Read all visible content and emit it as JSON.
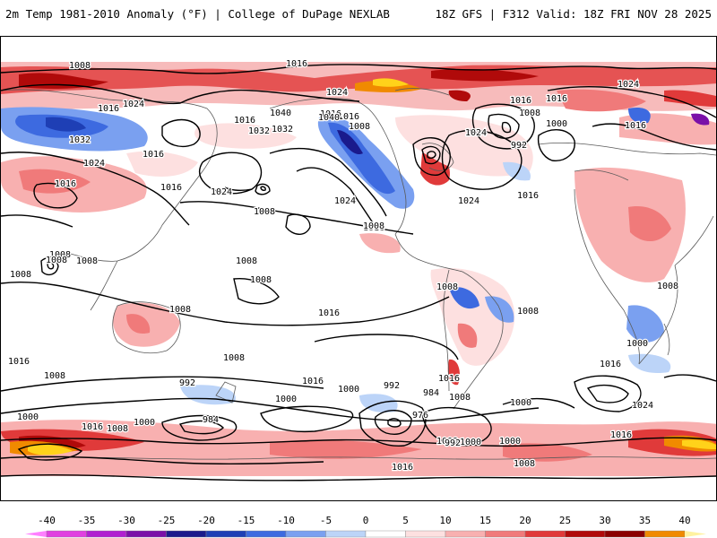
{
  "header": {
    "left_title": "2m Temp 1981-2010 Anomaly (°F) | College of DuPage NEXLAB",
    "right_title": "18Z GFS | F312 Valid: 18Z FRI NOV 28 2025"
  },
  "map": {
    "contour_labels": [
      {
        "t": "1008"
      },
      {
        "t": "1016"
      },
      {
        "t": "1016"
      },
      {
        "t": "1024"
      },
      {
        "t": "1032"
      },
      {
        "t": "1024"
      },
      {
        "t": "1016"
      },
      {
        "t": "1016"
      },
      {
        "t": "1024"
      },
      {
        "t": "1008"
      },
      {
        "t": "1016"
      },
      {
        "t": "1016"
      },
      {
        "t": "1040"
      },
      {
        "t": "1032"
      },
      {
        "t": "1024"
      },
      {
        "t": "1016"
      },
      {
        "t": "1008"
      },
      {
        "t": "1016"
      },
      {
        "t": "1032"
      },
      {
        "t": "1040"
      },
      {
        "t": "1024"
      },
      {
        "t": "1016"
      },
      {
        "t": "1024"
      },
      {
        "t": "1016"
      },
      {
        "t": "992"
      },
      {
        "t": "1000"
      },
      {
        "t": "1024"
      },
      {
        "t": "1008"
      },
      {
        "t": "1016"
      },
      {
        "t": "1024"
      },
      {
        "t": "1016"
      },
      {
        "t": "1016"
      },
      {
        "t": "1008"
      },
      {
        "t": "1008"
      },
      {
        "t": "1008"
      },
      {
        "t": "1008"
      },
      {
        "t": "1008"
      },
      {
        "t": "1008"
      },
      {
        "t": "1008"
      },
      {
        "t": "1016"
      },
      {
        "t": "1008"
      },
      {
        "t": "1008"
      },
      {
        "t": "1016"
      },
      {
        "t": "1008"
      },
      {
        "t": "1008"
      },
      {
        "t": "1008"
      },
      {
        "t": "992"
      },
      {
        "t": "1000"
      },
      {
        "t": "984"
      },
      {
        "t": "1016"
      },
      {
        "t": "1000"
      },
      {
        "t": "992"
      },
      {
        "t": "984"
      },
      {
        "t": "1016"
      },
      {
        "t": "976"
      },
      {
        "t": "1008"
      },
      {
        "t": "1008"
      },
      {
        "t": "1000"
      },
      {
        "t": "1000"
      },
      {
        "t": "1016"
      },
      {
        "t": "1008"
      },
      {
        "t": "1000"
      },
      {
        "t": "992"
      },
      {
        "t": "1000"
      },
      {
        "t": "1000"
      },
      {
        "t": "1016"
      },
      {
        "t": "1024"
      },
      {
        "t": "1008"
      },
      {
        "t": "1000"
      },
      {
        "t": "1016"
      },
      {
        "t": "1008"
      },
      {
        "t": "1016"
      }
    ]
  },
  "colorbar": {
    "ticks": [
      "-40",
      "-35",
      "-30",
      "-25",
      "-20",
      "-15",
      "-10",
      "-5",
      "0",
      "5",
      "10",
      "15",
      "20",
      "25",
      "30",
      "35",
      "40"
    ],
    "colors": [
      "#e040e0",
      "#b020d0",
      "#7a10a8",
      "#1a1a8c",
      "#1e3fb5",
      "#3d6ae0",
      "#7aa0f0",
      "#bcd4f8",
      "#ffffff",
      "#fde0e0",
      "#f8b0b0",
      "#f07a7a",
      "#e03a3a",
      "#b00a0a",
      "#8a0000",
      "#f08a00",
      "#ffd21a"
    ],
    "end_low_color": "#ff80ff",
    "end_high_color": "#fff2a0"
  }
}
